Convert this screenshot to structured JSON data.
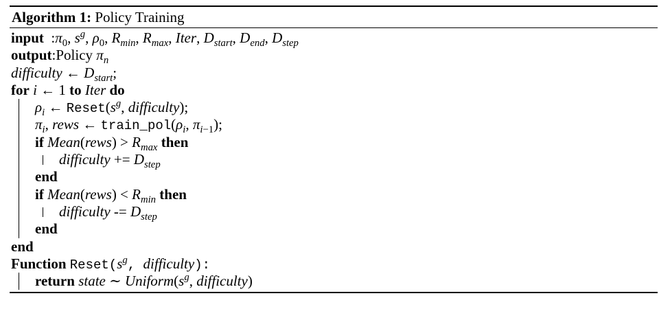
{
  "caption": {
    "label": "Algorithm 1:",
    "title": "Policy Training"
  },
  "lines": {
    "input_kw": "input",
    "input_text": "  : π0, s^g, ρ0, Rmin, Rmax, Iter, Dstart, Dend, Dstep",
    "output_kw": "output",
    "output_text": " : Policy πn",
    "init": "difficulty ← Dstart;",
    "for_kw": "for",
    "for_text": "i ← 1",
    "to_kw": "to",
    "iter": "Iter",
    "do_kw": "do",
    "reset_call": "ρi ← Reset(s^g, difficulty);",
    "train_call": "πi, rews ← train_pol(ρi, πi−1);",
    "if_kw": "if",
    "if1_cond": "Mean(rews) > Rmax",
    "then_kw": "then",
    "inc": "difficulty += Dstep",
    "end_kw": "end",
    "if2_cond": "Mean(rews) < Rmin",
    "dec": "difficulty -= Dstep",
    "function_kw": "Function",
    "function_sig": "Reset(s^g, difficulty):",
    "return_kw": "return",
    "return_text": "state ∼ Uniform(s^g, difficulty)"
  }
}
